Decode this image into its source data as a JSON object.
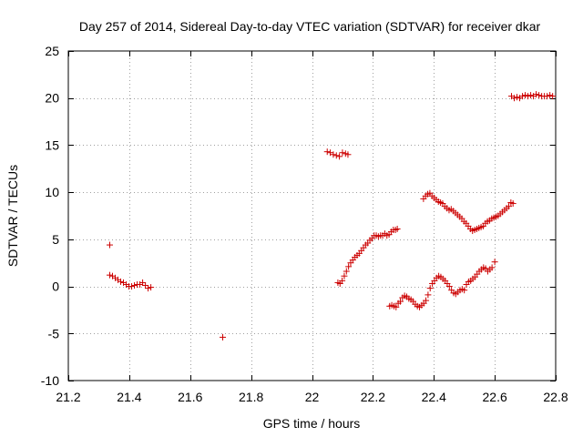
{
  "chart_data": {
    "type": "scatter",
    "title": "Day 257 of 2014, Sidereal Day-to-day VTEC variation (SDTVAR) for receiver dkar",
    "xlabel": "GPS time / hours",
    "ylabel": "SDTVAR / TECUs",
    "xlim": [
      21.2,
      22.8
    ],
    "ylim": [
      -10,
      25
    ],
    "xticks": [
      21.2,
      21.4,
      21.6,
      21.8,
      22,
      22.2,
      22.4,
      22.6,
      22.8
    ],
    "xtick_labels": [
      "21.2",
      "21.4",
      "21.6",
      "21.8",
      "22",
      "22.2",
      "22.4",
      "22.6",
      "22.8"
    ],
    "yticks": [
      -10,
      -5,
      0,
      5,
      10,
      15,
      20,
      25
    ],
    "ytick_labels": [
      "-10",
      "-5",
      "0",
      "5",
      "10",
      "15",
      "20",
      "25"
    ],
    "grid": true,
    "marker": "+",
    "marker_color": "#cc0000",
    "series": [
      {
        "name": "dkar",
        "points": [
          [
            21.336,
            4.4
          ],
          [
            21.336,
            1.2
          ],
          [
            21.345,
            1.1
          ],
          [
            21.354,
            0.9
          ],
          [
            21.363,
            0.7
          ],
          [
            21.372,
            0.5
          ],
          [
            21.381,
            0.4
          ],
          [
            21.39,
            0.2
          ],
          [
            21.399,
            0.0
          ],
          [
            21.408,
            0.0
          ],
          [
            21.417,
            0.1
          ],
          [
            21.426,
            0.2
          ],
          [
            21.435,
            0.2
          ],
          [
            21.444,
            0.4
          ],
          [
            21.453,
            0.1
          ],
          [
            21.462,
            -0.2
          ],
          [
            21.471,
            -0.1
          ],
          [
            21.707,
            -5.4
          ],
          [
            22.05,
            14.3
          ],
          [
            22.06,
            14.2
          ],
          [
            22.07,
            14.0
          ],
          [
            22.08,
            13.9
          ],
          [
            22.09,
            13.8
          ],
          [
            22.1,
            14.2
          ],
          [
            22.11,
            14.1
          ],
          [
            22.118,
            14.0
          ],
          [
            22.085,
            0.4
          ],
          [
            22.092,
            0.3
          ],
          [
            22.099,
            0.6
          ],
          [
            22.106,
            1.1
          ],
          [
            22.113,
            1.6
          ],
          [
            22.12,
            2.1
          ],
          [
            22.127,
            2.5
          ],
          [
            22.134,
            2.8
          ],
          [
            22.141,
            3.1
          ],
          [
            22.148,
            3.3
          ],
          [
            22.155,
            3.5
          ],
          [
            22.162,
            3.8
          ],
          [
            22.169,
            4.1
          ],
          [
            22.176,
            4.4
          ],
          [
            22.183,
            4.6
          ],
          [
            22.19,
            4.9
          ],
          [
            22.197,
            5.1
          ],
          [
            22.204,
            5.4
          ],
          [
            22.211,
            5.4
          ],
          [
            22.218,
            5.3
          ],
          [
            22.225,
            5.4
          ],
          [
            22.232,
            5.4
          ],
          [
            22.239,
            5.6
          ],
          [
            22.246,
            5.4
          ],
          [
            22.253,
            5.5
          ],
          [
            22.26,
            5.8
          ],
          [
            22.267,
            6.0
          ],
          [
            22.274,
            6.0
          ],
          [
            22.28,
            6.1
          ],
          [
            22.255,
            -2.1
          ],
          [
            22.262,
            -2.0
          ],
          [
            22.269,
            -2.1
          ],
          [
            22.276,
            -2.2
          ],
          [
            22.283,
            -1.8
          ],
          [
            22.29,
            -1.6
          ],
          [
            22.297,
            -1.2
          ],
          [
            22.304,
            -1.0
          ],
          [
            22.311,
            -1.1
          ],
          [
            22.318,
            -1.3
          ],
          [
            22.325,
            -1.4
          ],
          [
            22.332,
            -1.6
          ],
          [
            22.339,
            -1.9
          ],
          [
            22.346,
            -2.1
          ],
          [
            22.353,
            -2.2
          ],
          [
            22.36,
            -2.0
          ],
          [
            22.367,
            -1.8
          ],
          [
            22.374,
            -1.5
          ],
          [
            22.381,
            -0.9
          ],
          [
            22.388,
            -0.2
          ],
          [
            22.395,
            0.3
          ],
          [
            22.402,
            0.6
          ],
          [
            22.409,
            0.9
          ],
          [
            22.416,
            1.1
          ],
          [
            22.423,
            1.0
          ],
          [
            22.43,
            0.8
          ],
          [
            22.437,
            0.6
          ],
          [
            22.444,
            0.3
          ],
          [
            22.451,
            0.0
          ],
          [
            22.458,
            -0.4
          ],
          [
            22.465,
            -0.7
          ],
          [
            22.472,
            -0.8
          ],
          [
            22.479,
            -0.6
          ],
          [
            22.486,
            -0.4
          ],
          [
            22.493,
            -0.3
          ],
          [
            22.5,
            -0.4
          ],
          [
            22.507,
            0.2
          ],
          [
            22.514,
            0.5
          ],
          [
            22.521,
            0.6
          ],
          [
            22.528,
            0.8
          ],
          [
            22.535,
            1.0
          ],
          [
            22.542,
            1.3
          ],
          [
            22.549,
            1.6
          ],
          [
            22.556,
            1.8
          ],
          [
            22.563,
            2.0
          ],
          [
            22.57,
            1.9
          ],
          [
            22.577,
            1.6
          ],
          [
            22.584,
            1.8
          ],
          [
            22.591,
            2.0
          ],
          [
            22.6,
            2.6
          ],
          [
            22.366,
            9.3
          ],
          [
            22.373,
            9.6
          ],
          [
            22.38,
            9.8
          ],
          [
            22.387,
            9.9
          ],
          [
            22.394,
            9.6
          ],
          [
            22.401,
            9.4
          ],
          [
            22.408,
            9.2
          ],
          [
            22.415,
            9.0
          ],
          [
            22.422,
            8.9
          ],
          [
            22.429,
            8.8
          ],
          [
            22.436,
            8.5
          ],
          [
            22.443,
            8.3
          ],
          [
            22.45,
            8.1
          ],
          [
            22.457,
            8.2
          ],
          [
            22.464,
            8.0
          ],
          [
            22.471,
            7.8
          ],
          [
            22.478,
            7.6
          ],
          [
            22.485,
            7.4
          ],
          [
            22.492,
            7.2
          ],
          [
            22.499,
            6.9
          ],
          [
            22.506,
            6.7
          ],
          [
            22.513,
            6.4
          ],
          [
            22.52,
            6.1
          ],
          [
            22.527,
            5.9
          ],
          [
            22.534,
            6.0
          ],
          [
            22.541,
            6.1
          ],
          [
            22.548,
            6.2
          ],
          [
            22.555,
            6.3
          ],
          [
            22.562,
            6.4
          ],
          [
            22.569,
            6.7
          ],
          [
            22.576,
            6.9
          ],
          [
            22.583,
            7.0
          ],
          [
            22.59,
            7.2
          ],
          [
            22.597,
            7.3
          ],
          [
            22.604,
            7.4
          ],
          [
            22.611,
            7.5
          ],
          [
            22.618,
            7.7
          ],
          [
            22.625,
            7.9
          ],
          [
            22.632,
            8.1
          ],
          [
            22.639,
            8.3
          ],
          [
            22.646,
            8.5
          ],
          [
            22.653,
            8.9
          ],
          [
            22.66,
            8.8
          ],
          [
            22.655,
            20.2
          ],
          [
            22.664,
            20.0
          ],
          [
            22.673,
            20.1
          ],
          [
            22.682,
            20.0
          ],
          [
            22.691,
            20.2
          ],
          [
            22.7,
            20.3
          ],
          [
            22.709,
            20.2
          ],
          [
            22.718,
            20.3
          ],
          [
            22.727,
            20.2
          ],
          [
            22.736,
            20.4
          ],
          [
            22.745,
            20.3
          ],
          [
            22.754,
            20.2
          ],
          [
            22.763,
            20.2
          ],
          [
            22.772,
            20.2
          ],
          [
            22.781,
            20.3
          ],
          [
            22.79,
            20.2
          ]
        ]
      }
    ]
  }
}
